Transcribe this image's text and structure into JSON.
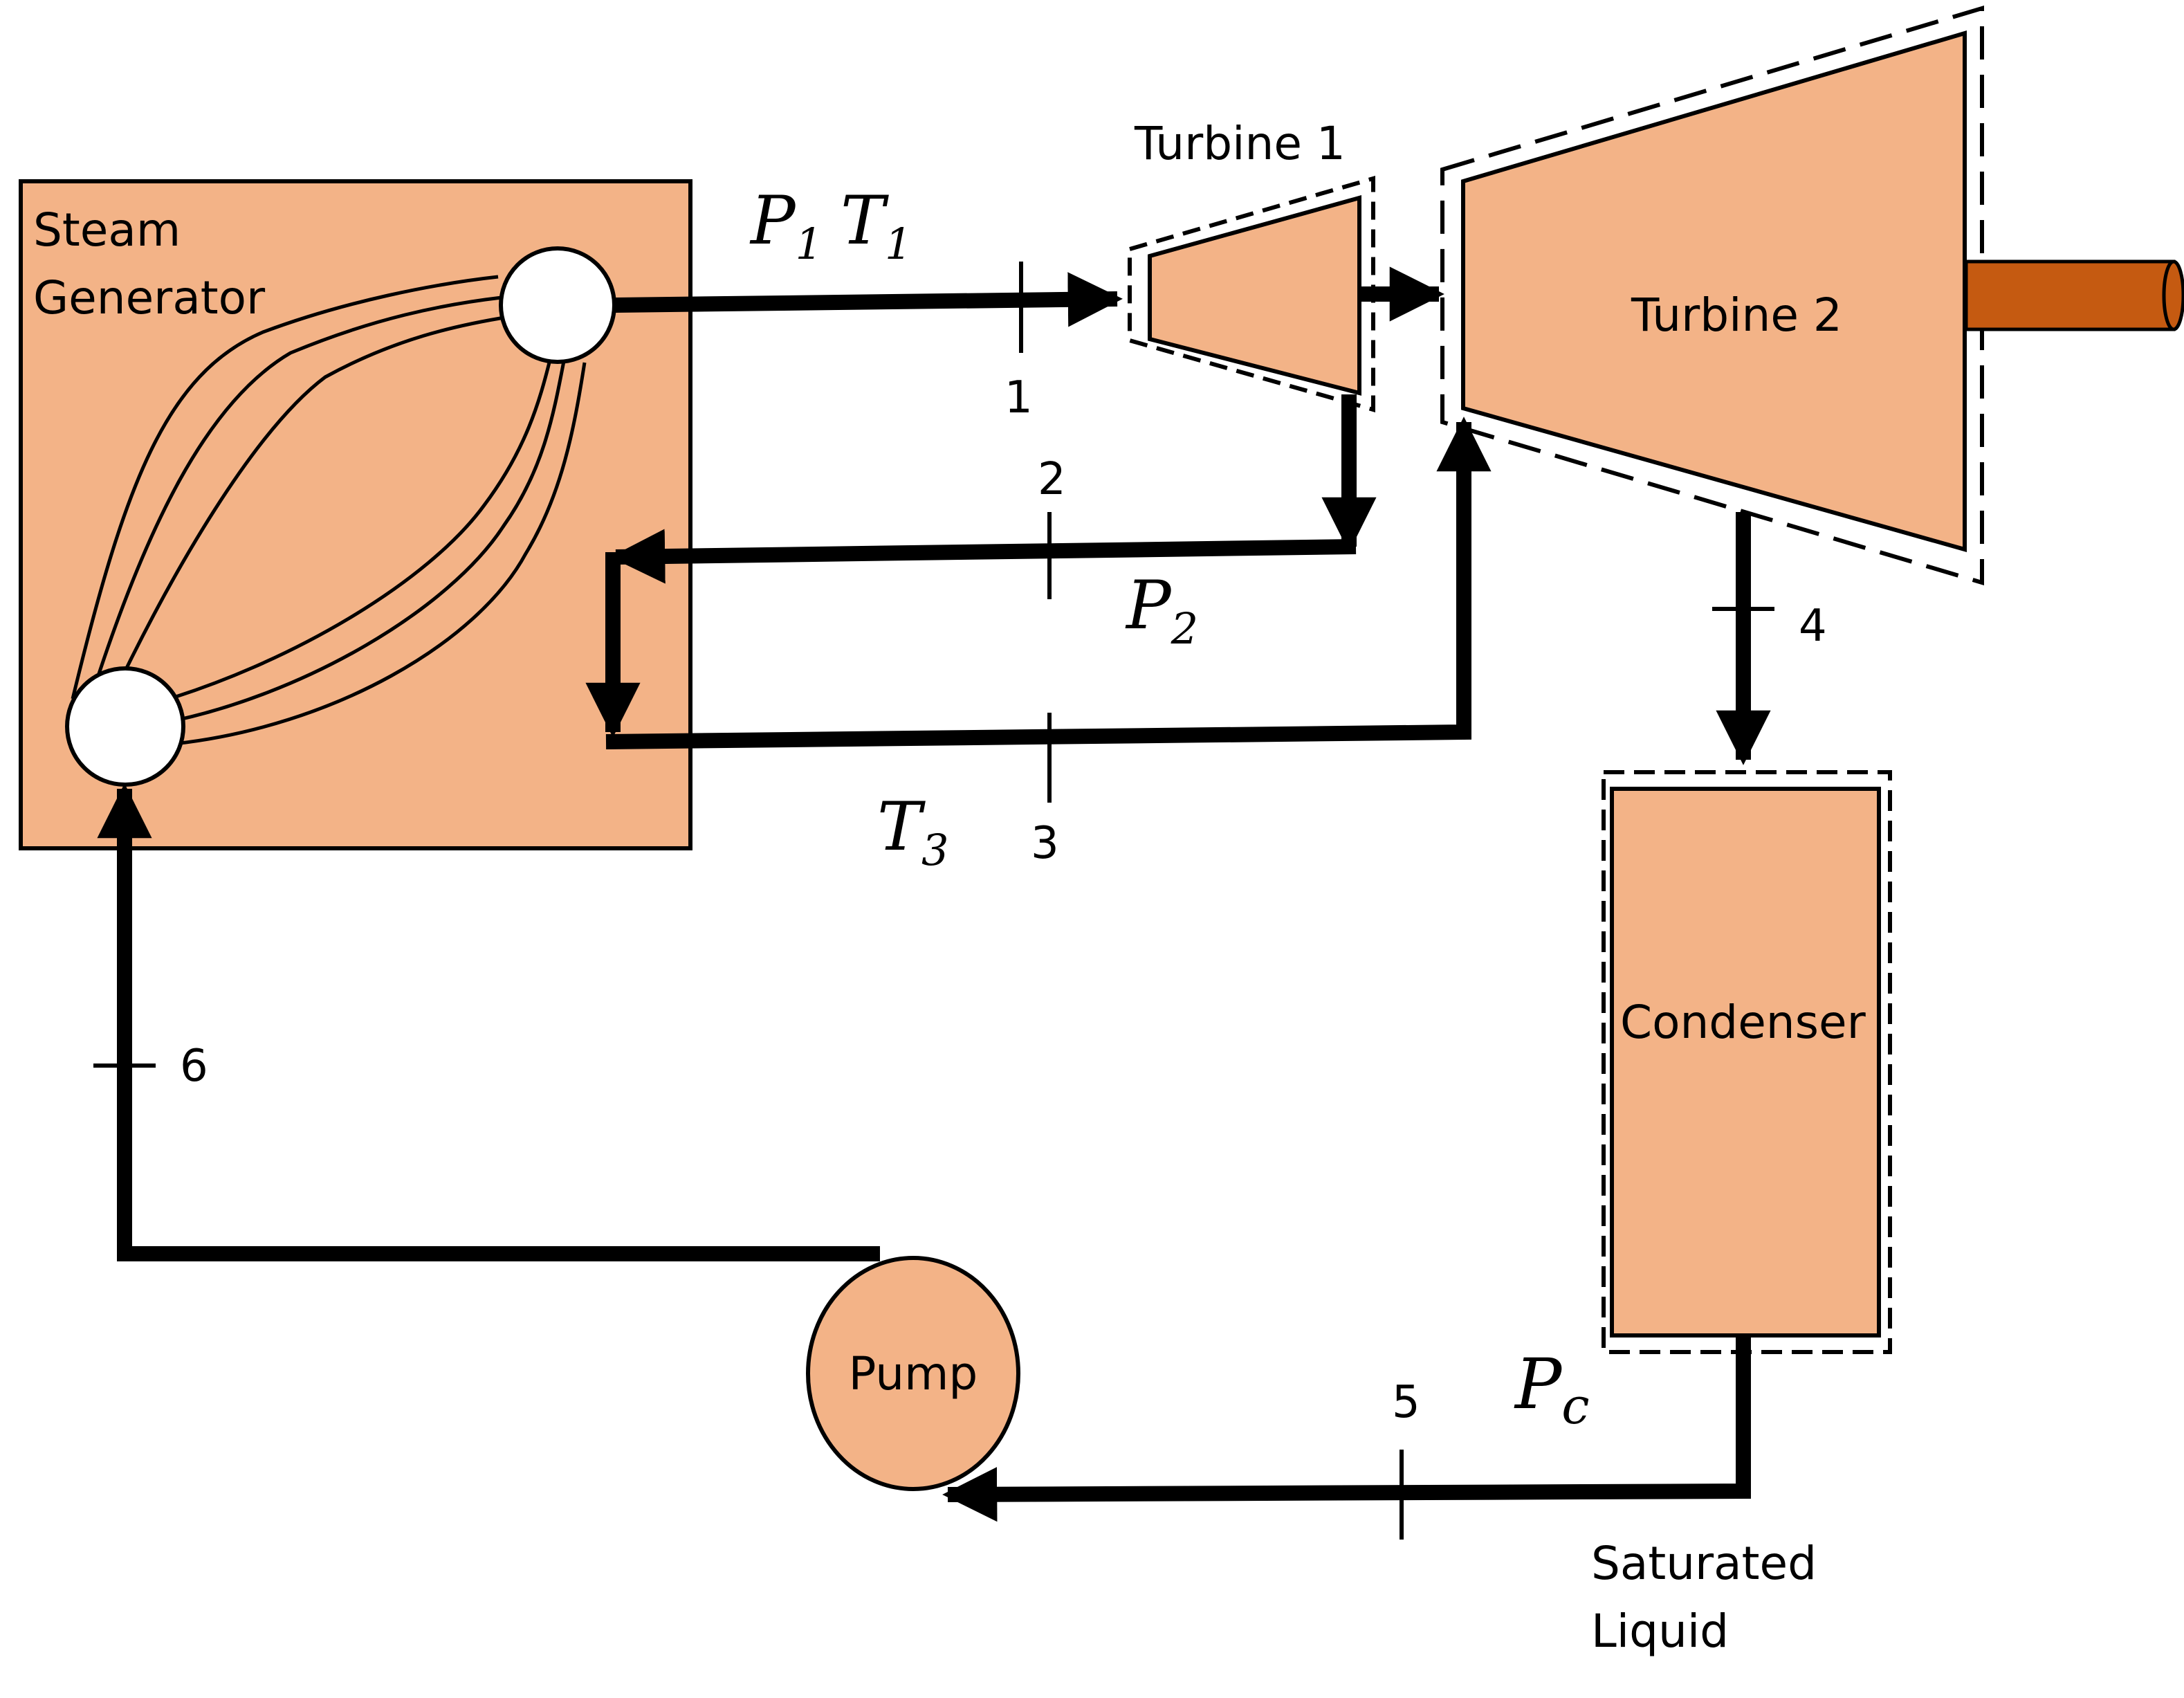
{
  "components": {
    "steam_generator": "Steam\nGenerator",
    "turbine1": "Turbine 1",
    "turbine2": "Turbine 2",
    "condenser": "Condenser",
    "pump": "Pump"
  },
  "state_points": [
    "1",
    "2",
    "3",
    "4",
    "5",
    "6"
  ],
  "variables": {
    "p1": {
      "sym": "P",
      "sub": "1"
    },
    "t1": {
      "sym": "T",
      "sub": "1"
    },
    "p2": {
      "sym": "P",
      "sub": "2"
    },
    "t3": {
      "sym": "T",
      "sub": "3"
    },
    "pc": {
      "sym": "P",
      "sub": "c"
    }
  },
  "annotations": {
    "saturated_liquid": "Saturated\nLiquid"
  },
  "colors": {
    "component_fill": "#f3b387",
    "shaft_fill": "#c55a11"
  }
}
